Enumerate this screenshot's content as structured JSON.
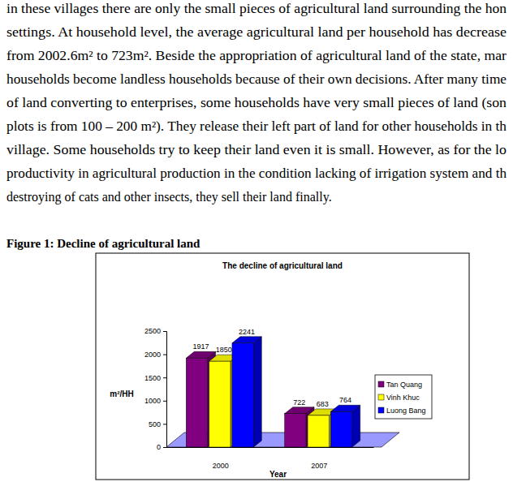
{
  "text": {
    "paragraph": [
      "in these villages there are only the small pieces of agricultural land surrounding the hon",
      "settings. At household level, the average agricultural land per household has decrease",
      "from 2002.6m² to 723m². Beside the appropriation of agricultural land of the state, mar",
      "households become landless households because of their own decisions. After many time",
      "of land converting to enterprises, some households have very small pieces of land (son",
      "plots is from 100 – 200 m²). They release their left part of land for other households in th",
      "village. Some households try to keep their land even it is small. However, as for the lo",
      "productivity in agricultural production in the condition lacking of irrigation system and th",
      "destroying of cats and other insects, they sell their land finally."
    ]
  },
  "figure": {
    "caption": "Figure 1: Decline of agricultural land"
  },
  "chart_data": {
    "type": "bar",
    "title": "The decline of agricultural land",
    "x_label": "Year",
    "y_label": "m²/HH",
    "categories": [
      "2000",
      "2007"
    ],
    "series": [
      {
        "name": "Tan Quang",
        "color": "#800080",
        "values": [
          1917,
          722
        ]
      },
      {
        "name": "Vinh Khuc",
        "color": "#ffff00",
        "values": [
          1850,
          683
        ]
      },
      {
        "name": "Luong Bang",
        "color": "#0000ff",
        "values": [
          2241,
          764
        ]
      }
    ],
    "ylim": [
      0,
      2500
    ],
    "yticks": [
      0,
      500,
      1000,
      1500,
      2000,
      2500
    ],
    "grid": false,
    "legend": "right",
    "data_labels": true
  }
}
